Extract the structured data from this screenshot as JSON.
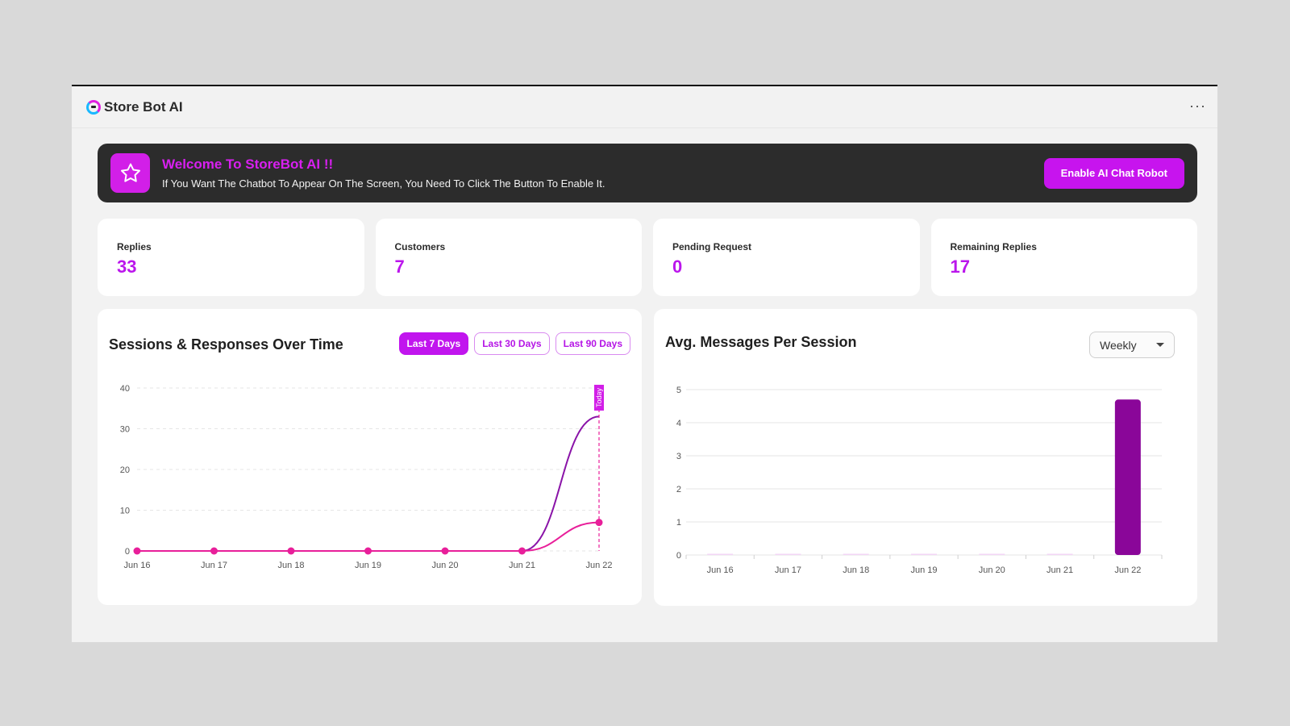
{
  "app": {
    "title": "Store Bot AI",
    "more_label": "···"
  },
  "banner": {
    "title": "Welcome To StoreBot AI !!",
    "subtitle": "If You Want The Chatbot To Appear On The Screen, You Need To Click The Button To Enable It.",
    "button_label": "Enable AI Chat Robot"
  },
  "stats": [
    {
      "label": "Replies",
      "value": "33"
    },
    {
      "label": "Customers",
      "value": "7"
    },
    {
      "label": "Pending Request",
      "value": "0"
    },
    {
      "label": "Remaining Replies",
      "value": "17"
    }
  ],
  "sessions_panel": {
    "title": "Sessions & Responses Over Time",
    "tabs": [
      "Last 7 Days",
      "Last 30 Days",
      "Last 90 Days"
    ],
    "active_tab": 0
  },
  "avg_panel": {
    "title": "Avg. Messages Per Session",
    "select_value": "Weekly"
  },
  "colors": {
    "accent": "#c115ee",
    "line_purple": "#8a14a8",
    "line_pink": "#e81f9a",
    "bar": "#8a0699",
    "banner_bg": "#2c2c2c"
  },
  "chart_data": [
    {
      "type": "line",
      "title": "Sessions & Responses Over Time",
      "x": [
        "Jun 16",
        "Jun 17",
        "Jun 18",
        "Jun 19",
        "Jun 20",
        "Jun 21",
        "Jun 22"
      ],
      "series": [
        {
          "values": [
            0,
            0,
            0,
            0,
            0,
            0,
            33
          ]
        },
        {
          "values": [
            0,
            0,
            0,
            0,
            0,
            0,
            7
          ]
        }
      ],
      "ylim": [
        0,
        40
      ],
      "yticks": [
        0,
        10,
        20,
        30,
        40
      ],
      "marker_label": "Today",
      "marker_x": "Jun 22",
      "grid": true
    },
    {
      "type": "bar",
      "title": "Avg. Messages Per Session",
      "categories": [
        "Jun 16",
        "Jun 17",
        "Jun 18",
        "Jun 19",
        "Jun 20",
        "Jun 21",
        "Jun 22"
      ],
      "values": [
        0,
        0,
        0,
        0,
        0,
        0,
        4.7
      ],
      "ylim": [
        0,
        5
      ],
      "yticks": [
        0,
        1,
        2,
        3,
        4,
        5
      ],
      "grid": true
    }
  ]
}
